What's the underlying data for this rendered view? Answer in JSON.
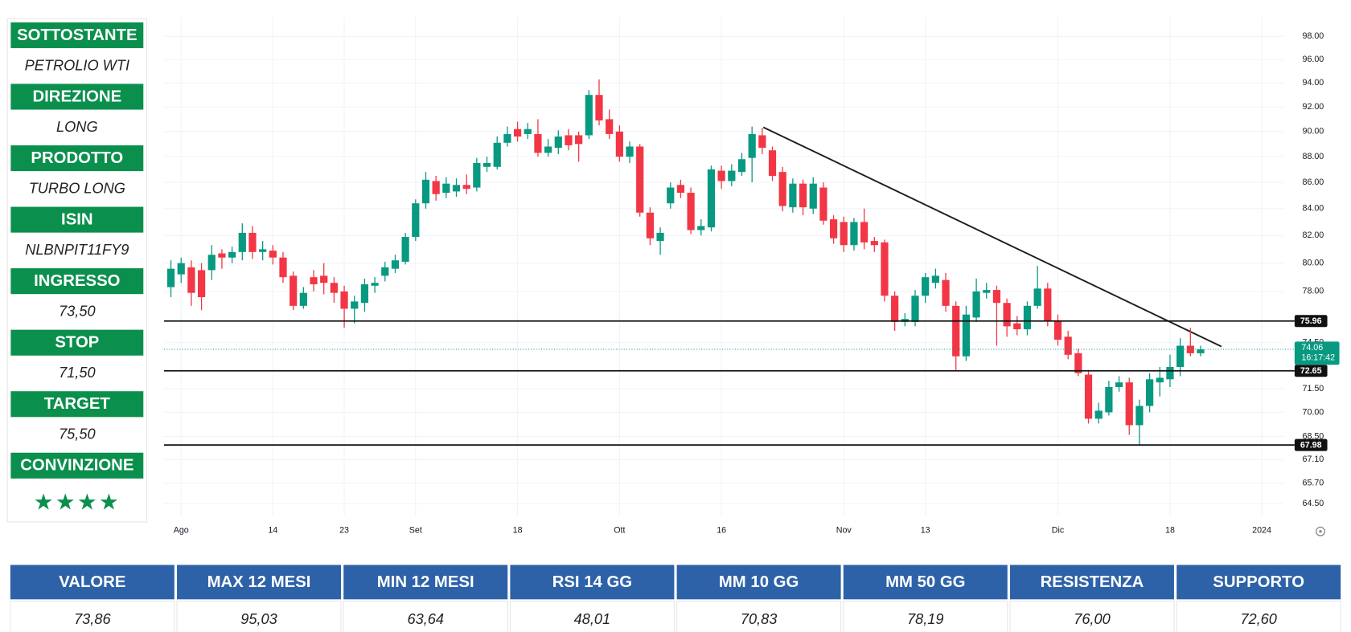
{
  "panel": {
    "rows": [
      {
        "label": "SOTTOSTANTE",
        "value": "PETROLIO WTI"
      },
      {
        "label": "DIREZIONE",
        "value": "LONG"
      },
      {
        "label": "PRODOTTO",
        "value": "TURBO LONG"
      },
      {
        "label": "ISIN",
        "value": "NLBNPIT11FY9"
      },
      {
        "label": "INGRESSO",
        "value": "73,50"
      },
      {
        "label": "STOP",
        "value": "71,50"
      },
      {
        "label": "TARGET",
        "value": "75,50"
      },
      {
        "label": "CONVINZIONE",
        "value": "★★★★"
      }
    ]
  },
  "chart_data": {
    "type": "candlestick",
    "log_scale": true,
    "grid": true,
    "up_color": "#089981",
    "down_color": "#f23645",
    "categories": [
      null,
      "Ago",
      null,
      null,
      null,
      null,
      null,
      null,
      null,
      null,
      "14",
      null,
      null,
      null,
      null,
      null,
      null,
      "23",
      null,
      null,
      null,
      null,
      null,
      null,
      "Set",
      null,
      null,
      null,
      null,
      null,
      null,
      null,
      null,
      null,
      "18",
      null,
      null,
      null,
      null,
      null,
      null,
      null,
      null,
      null,
      "Ott",
      null,
      null,
      null,
      null,
      null,
      null,
      null,
      null,
      null,
      "16",
      null,
      null,
      null,
      null,
      null,
      null,
      null,
      null,
      null,
      null,
      null,
      "Nov",
      null,
      null,
      null,
      null,
      null,
      null,
      null,
      "13",
      null,
      null,
      null,
      null,
      null,
      null,
      null,
      null,
      null,
      null,
      null,
      null,
      "Dic",
      null,
      null,
      null,
      null,
      null,
      null,
      null,
      null,
      null,
      null,
      "18",
      null,
      null,
      null,
      null,
      null,
      null,
      null,
      null,
      "2024"
    ],
    "open": [
      78.3,
      79.2,
      79.7,
      79.5,
      79.5,
      80.7,
      80.4,
      80.8,
      82.2,
      80.8,
      80.9,
      80.4,
      79.1,
      77.0,
      79.0,
      79.1,
      78.6,
      78.0,
      76.8,
      77.2,
      78.4,
      79.1,
      79.6,
      80.1,
      81.9,
      84.4,
      86.1,
      85.2,
      85.3,
      85.8,
      85.6,
      87.2,
      87.2,
      89.1,
      90.2,
      89.8,
      89.8,
      88.3,
      88.7,
      89.7,
      89.7,
      89.7,
      93.0,
      91.0,
      90.0,
      88.0,
      88.8,
      83.7,
      81.6,
      84.4,
      85.8,
      85.2,
      82.4,
      82.6,
      86.9,
      86.1,
      86.8,
      87.9,
      89.7,
      88.5,
      86.8,
      84.1,
      85.9,
      84.0,
      85.6,
      83.2,
      83.0,
      81.3,
      83.0,
      81.6,
      81.5,
      77.7,
      75.9,
      75.9,
      77.7,
      78.6,
      78.8,
      77.0,
      73.6,
      76.2,
      77.9,
      78.1,
      77.2,
      75.8,
      75.4,
      77.0,
      78.2,
      76.0,
      74.9,
      73.8,
      72.4,
      69.6,
      70.0,
      71.6,
      71.9,
      69.2,
      70.4,
      71.9,
      72.1,
      72.9,
      74.3,
      73.8,
      null,
      null,
      null,
      null,
      null,
      null
    ],
    "high": [
      80.2,
      80.4,
      80.2,
      80.0,
      81.3,
      81.0,
      81.2,
      82.9,
      82.7,
      81.6,
      81.3,
      80.8,
      79.4,
      78.3,
      79.5,
      80.0,
      79.0,
      78.4,
      77.7,
      78.9,
      79.0,
      80.1,
      80.6,
      82.2,
      84.7,
      86.8,
      86.5,
      86.4,
      86.3,
      86.6,
      87.9,
      88.0,
      89.6,
      90.4,
      90.8,
      90.7,
      91.0,
      89.4,
      90.1,
      90.2,
      90.0,
      93.4,
      94.3,
      91.8,
      90.5,
      89.2,
      89.0,
      84.1,
      82.6,
      86.0,
      86.2,
      85.6,
      83.2,
      87.3,
      87.3,
      87.4,
      88.3,
      90.4,
      90.3,
      88.8,
      87.2,
      86.3,
      86.2,
      86.4,
      86.0,
      83.5,
      83.4,
      83.3,
      84.0,
      81.9,
      81.7,
      78.0,
      76.5,
      78.1,
      79.3,
      79.6,
      79.3,
      77.3,
      77.0,
      78.9,
      78.6,
      78.4,
      77.5,
      76.3,
      77.3,
      79.8,
      78.6,
      76.4,
      75.3,
      74.1,
      72.7,
      70.6,
      72.0,
      72.3,
      72.2,
      70.8,
      72.5,
      72.9,
      73.7,
      74.8,
      75.5,
      74.3,
      null,
      null,
      null,
      null,
      null,
      null
    ],
    "low": [
      77.6,
      78.6,
      77.0,
      76.7,
      78.8,
      79.6,
      80.0,
      80.2,
      80.3,
      80.2,
      79.9,
      78.6,
      76.7,
      76.8,
      78.0,
      77.8,
      77.2,
      75.5,
      75.8,
      76.6,
      77.9,
      78.7,
      79.3,
      79.9,
      81.6,
      84.0,
      84.6,
      84.8,
      84.9,
      85.1,
      85.3,
      86.8,
      87.0,
      88.8,
      89.2,
      89.4,
      88.0,
      88.0,
      88.2,
      88.5,
      87.6,
      89.4,
      90.5,
      89.4,
      87.6,
      87.5,
      83.4,
      81.3,
      80.6,
      84.0,
      84.8,
      82.1,
      82.0,
      82.3,
      85.5,
      85.7,
      86.5,
      86.0,
      88.2,
      86.1,
      83.8,
      83.7,
      83.5,
      83.6,
      82.8,
      81.4,
      80.8,
      80.9,
      81.0,
      80.8,
      77.3,
      75.3,
      75.6,
      75.6,
      77.2,
      78.2,
      76.6,
      72.7,
      73.3,
      75.9,
      77.5,
      74.3,
      74.9,
      75.0,
      75.0,
      76.8,
      75.6,
      74.3,
      73.4,
      72.3,
      69.3,
      69.3,
      69.8,
      71.3,
      68.6,
      68.0,
      70.0,
      71.0,
      71.6,
      72.3,
      73.6,
      73.6,
      null,
      null,
      null,
      null,
      null,
      null
    ],
    "close": [
      79.6,
      80.0,
      77.9,
      77.6,
      80.6,
      80.4,
      80.8,
      82.2,
      80.8,
      81.0,
      80.4,
      79.0,
      77.0,
      77.9,
      78.5,
      78.6,
      77.9,
      76.8,
      77.3,
      78.5,
      78.6,
      79.7,
      80.2,
      81.9,
      84.4,
      86.2,
      85.1,
      85.9,
      85.8,
      85.5,
      87.5,
      87.5,
      89.1,
      89.8,
      89.6,
      90.2,
      88.3,
      88.8,
      89.6,
      88.9,
      89.0,
      93.0,
      90.9,
      89.8,
      88.0,
      88.8,
      83.7,
      81.8,
      82.2,
      85.6,
      85.2,
      82.4,
      82.7,
      87.0,
      86.1,
      86.9,
      87.8,
      89.8,
      88.7,
      86.5,
      84.2,
      85.9,
      84.1,
      85.9,
      83.1,
      81.8,
      81.3,
      83.0,
      81.5,
      81.3,
      77.7,
      75.9,
      76.1,
      77.7,
      79.0,
      79.1,
      77.0,
      73.6,
      76.4,
      78.0,
      78.1,
      77.2,
      75.6,
      75.4,
      77.0,
      78.2,
      76.0,
      74.7,
      73.7,
      72.5,
      69.6,
      70.1,
      71.6,
      71.9,
      69.2,
      70.4,
      72.1,
      72.2,
      72.9,
      74.3,
      73.8,
      74.06,
      null,
      null,
      null,
      null,
      null,
      null
    ],
    "ylim": [
      63.8,
      99.7
    ],
    "yticks": [
      {
        "value": 98,
        "label": "98.00"
      },
      {
        "value": 96,
        "label": "96.00"
      },
      {
        "value": 94,
        "label": "94.00"
      },
      {
        "value": 92,
        "label": "92.00"
      },
      {
        "value": 90,
        "label": "90.00"
      },
      {
        "value": 88,
        "label": "88.00"
      },
      {
        "value": 86,
        "label": "86.00"
      },
      {
        "value": 84,
        "label": "84.00"
      },
      {
        "value": 82,
        "label": "82.00"
      },
      {
        "value": 80,
        "label": "80.00"
      },
      {
        "value": 78,
        "label": "78.00"
      },
      {
        "value": 74.5,
        "label": "74.50"
      },
      {
        "value": 71.5,
        "label": "71.50"
      },
      {
        "value": 70,
        "label": "70.00"
      },
      {
        "value": 68.5,
        "label": "68.50"
      },
      {
        "value": 67.1,
        "label": "67.10"
      },
      {
        "value": 65.7,
        "label": "65.70"
      },
      {
        "value": 64.5,
        "label": "64.50"
      }
    ],
    "price_lines": [
      75.96,
      72.65,
      67.98
    ],
    "last_price": 74.06,
    "countdown": "16:17:42"
  },
  "table": {
    "headers": [
      "VALORE",
      "MAX 12 MESI",
      "MIN 12 MESI",
      "RSI 14 GG",
      "MM 10 GG",
      "MM 50 GG",
      "RESISTENZA",
      "SUPPORTO"
    ],
    "values": [
      "73,86",
      "95,03",
      "63,64",
      "48,01",
      "70,83",
      "78,19",
      "76,00",
      "72,60"
    ]
  }
}
